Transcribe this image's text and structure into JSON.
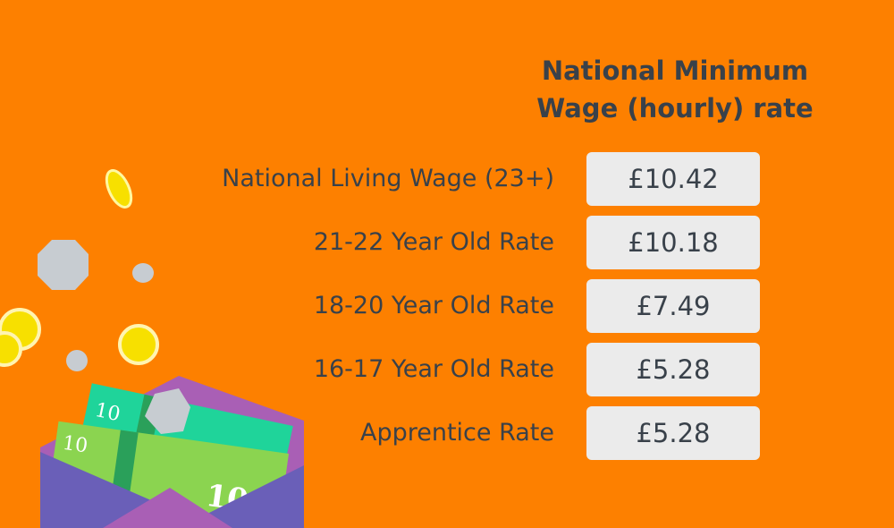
{
  "header": {
    "title": "National Minimum Wage (hourly) rate"
  },
  "table": {
    "rows": [
      [
        "National Living Wage (23+)",
        "£10.42"
      ],
      [
        "21-22 Year Old Rate",
        "£10.18"
      ],
      [
        "18-20 Year Old Rate",
        "£7.49"
      ],
      [
        "16-17 Year Old Rate",
        "£5.28"
      ],
      [
        "Apprentice Rate",
        "£5.28"
      ]
    ]
  },
  "illustration": {
    "banknote_labels": [
      "10",
      "10",
      "10"
    ]
  }
}
